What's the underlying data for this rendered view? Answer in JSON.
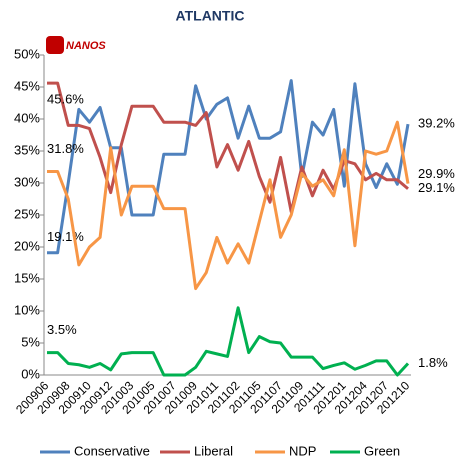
{
  "chart_data": {
    "type": "line",
    "title": "ATLANTIC",
    "logo": "NANOS",
    "categories": [
      "200906",
      null,
      "200908",
      null,
      "200910",
      null,
      "200912",
      null,
      "201003",
      null,
      "201005",
      null,
      "201007",
      null,
      "201009",
      null,
      "201011",
      null,
      "201102",
      null,
      "201105",
      null,
      "201107",
      null,
      "201109",
      null,
      "201111",
      null,
      "201201",
      null,
      "201204",
      null,
      "201207",
      null,
      "201210"
    ],
    "series": [
      {
        "name": "Conservative",
        "color": "#4f81bd",
        "values": [
          19.1,
          19.1,
          30,
          41.5,
          39.5,
          41.8,
          35.5,
          35.5,
          25,
          25,
          25,
          34.5,
          34.5,
          34.5,
          45.2,
          40,
          42.3,
          43.3,
          37,
          42,
          37,
          37,
          38,
          46,
          31,
          39.5,
          37.5,
          41.5,
          29.5,
          45.5,
          33,
          29.3,
          33,
          29.8,
          39.2
        ],
        "value_labels": [
          "19.1%",
          null,
          null,
          null,
          null,
          null,
          null,
          null,
          null,
          null,
          null,
          null,
          null,
          null,
          null,
          null,
          null,
          null,
          null,
          null,
          null,
          null,
          null,
          null,
          null,
          null,
          null,
          null,
          null,
          null,
          null,
          null,
          null,
          null,
          "39.2%"
        ]
      },
      {
        "name": "Liberal",
        "color": "#c0504d",
        "values": [
          45.6,
          45.6,
          39,
          39,
          38.5,
          34,
          28.5,
          36,
          42,
          42,
          42,
          39.5,
          39.5,
          39.5,
          39,
          41,
          32.5,
          36,
          32,
          36.5,
          31,
          27,
          34,
          25.5,
          32.5,
          28,
          32,
          29,
          33.5,
          33,
          30.5,
          31.5,
          30.5,
          30.5,
          29.1
        ],
        "value_labels": [
          "45.6%",
          null,
          null,
          null,
          null,
          null,
          null,
          null,
          null,
          null,
          null,
          null,
          null,
          null,
          null,
          null,
          null,
          null,
          null,
          null,
          null,
          null,
          null,
          null,
          null,
          null,
          null,
          null,
          null,
          null,
          null,
          null,
          null,
          null,
          "29.1%"
        ]
      },
      {
        "name": "NDP",
        "color": "#f79646",
        "values": [
          31.8,
          31.8,
          27.5,
          17.2,
          20,
          21.5,
          35.5,
          25,
          29.5,
          29.5,
          29.5,
          26,
          26,
          26,
          13.5,
          16,
          21.5,
          17.5,
          20.5,
          17.5,
          24,
          30.5,
          21.5,
          25,
          31.5,
          29.5,
          30.5,
          28,
          35.2,
          20.2,
          35,
          34.5,
          35,
          39.5,
          29.9
        ],
        "value_labels": [
          "31.8%",
          null,
          null,
          null,
          null,
          null,
          null,
          null,
          null,
          null,
          null,
          null,
          null,
          null,
          null,
          null,
          null,
          null,
          null,
          null,
          null,
          null,
          null,
          null,
          null,
          null,
          null,
          null,
          null,
          null,
          null,
          null,
          null,
          null,
          "29.9%"
        ]
      },
      {
        "name": "Green",
        "color": "#00b050",
        "values": [
          3.5,
          3.5,
          1.8,
          1.6,
          1.2,
          1.8,
          0.8,
          3.3,
          3.5,
          3.5,
          3.5,
          0,
          0,
          0,
          1.2,
          3.7,
          3.3,
          2.9,
          10.5,
          3.5,
          6,
          5.2,
          5,
          2.8,
          2.8,
          2.8,
          1,
          1.5,
          1.9,
          0.9,
          1.5,
          2.2,
          2.2,
          0,
          1.8
        ],
        "value_labels": [
          "3.5%",
          null,
          null,
          null,
          null,
          null,
          null,
          null,
          null,
          null,
          null,
          null,
          null,
          null,
          null,
          null,
          null,
          null,
          null,
          null,
          null,
          null,
          null,
          null,
          null,
          null,
          null,
          null,
          null,
          null,
          null,
          null,
          null,
          null,
          "1.8%"
        ]
      }
    ],
    "ylim": [
      0,
      50
    ],
    "yticks": [
      {
        "value": 0,
        "label": "0%"
      },
      {
        "value": 5,
        "label": "5%"
      },
      {
        "value": 10,
        "label": "10%"
      },
      {
        "value": 15,
        "label": "15%"
      },
      {
        "value": 20,
        "label": "20%"
      },
      {
        "value": 25,
        "label": "25%"
      },
      {
        "value": 30,
        "label": "30%"
      },
      {
        "value": 35,
        "label": "35%"
      },
      {
        "value": 40,
        "label": "40%"
      },
      {
        "value": 45,
        "label": "45%"
      },
      {
        "value": 50,
        "label": "50%"
      }
    ],
    "grid": false,
    "legend": "bottom"
  }
}
